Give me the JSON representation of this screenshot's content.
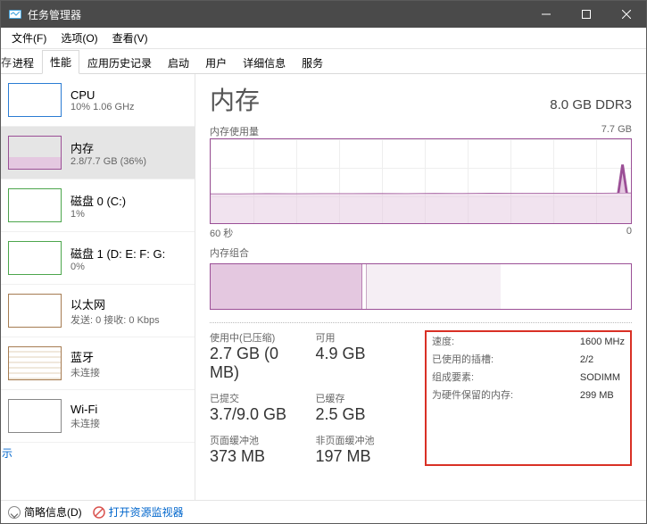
{
  "window": {
    "title": "任务管理器",
    "icon_color": "#4aa8e0"
  },
  "menubar": {
    "file": "文件(F)",
    "options": "选项(O)",
    "view": "查看(V)"
  },
  "tabs": {
    "items": [
      "进程",
      "性能",
      "应用历史记录",
      "启动",
      "用户",
      "详细信息",
      "服务"
    ],
    "active_index": 1
  },
  "sidebar": [
    {
      "key": "cpu",
      "title": "CPU",
      "sub": "10% 1.06 GHz",
      "thumb": "cpu"
    },
    {
      "key": "memory",
      "title": "内存",
      "sub": "2.8/7.7 GB (36%)",
      "thumb": "mem",
      "selected": true
    },
    {
      "key": "disk0",
      "title": "磁盘 0 (C:)",
      "sub": "1%",
      "thumb": "disk"
    },
    {
      "key": "disk1",
      "title": "磁盘 1 (D: E: F: G:",
      "sub": "0%",
      "thumb": "disk1"
    },
    {
      "key": "eth",
      "title": "以太网",
      "sub": "发送: 0 接收: 0 Kbps",
      "thumb": "eth"
    },
    {
      "key": "bt",
      "title": "蓝牙",
      "sub": "未连接",
      "thumb": "bt"
    },
    {
      "key": "wifi",
      "title": "Wi-Fi",
      "sub": "未连接",
      "thumb": "wifi"
    }
  ],
  "memory": {
    "title": "内存",
    "spec": "8.0 GB DDR3",
    "usage_label": "内存使用量",
    "usage_max": "7.7 GB",
    "x_left": "60 秒",
    "x_right": "0",
    "composition_label": "内存组合",
    "chart": {
      "type": "line",
      "color": "#9b4f96",
      "grid_color": "#eeeeee",
      "fill_color": "#e4c8e0",
      "values": [
        35,
        35,
        35.2,
        35.1,
        35.3,
        35.2,
        35.4,
        35.3,
        35.5,
        35.4,
        35.6,
        35.5,
        35.7,
        35.6,
        35.8,
        36
      ],
      "ylim": [
        0,
        100
      ]
    },
    "composition": {
      "in_use_pct": 36,
      "modified_pct": 1,
      "standby_pct": 32,
      "colors": {
        "in_use": "#e4c8e0",
        "standby": "#f5eef4",
        "border": "#9b4f96"
      }
    }
  },
  "stats_left": [
    {
      "label": "使用中(已压缩)",
      "value": "2.7 GB (0 MB)"
    },
    {
      "label": "可用",
      "value": "4.9 GB"
    },
    {
      "label": "已提交",
      "value": "3.7/9.0 GB"
    },
    {
      "label": "已缓存",
      "value": "2.5 GB"
    },
    {
      "label": "页面缓冲池",
      "value": "373 MB"
    },
    {
      "label": "非页面缓冲池",
      "value": "197 MB"
    }
  ],
  "stats_right": [
    {
      "label": "速度:",
      "value": "1600 MHz"
    },
    {
      "label": "已使用的插槽:",
      "value": "2/2"
    },
    {
      "label": "组成要素:",
      "value": "SODIMM"
    },
    {
      "label": "为硬件保留的内存:",
      "value": "299 MB"
    }
  ],
  "footer": {
    "toggle": "简略信息(D)",
    "link": "打开资源监视器"
  },
  "edge_left_top": "存",
  "edge_left_bottom": "示",
  "colors": {
    "titlebar_bg": "#4a4a4a",
    "accent": "#9b4f96",
    "highlight_border": "#d93025"
  }
}
